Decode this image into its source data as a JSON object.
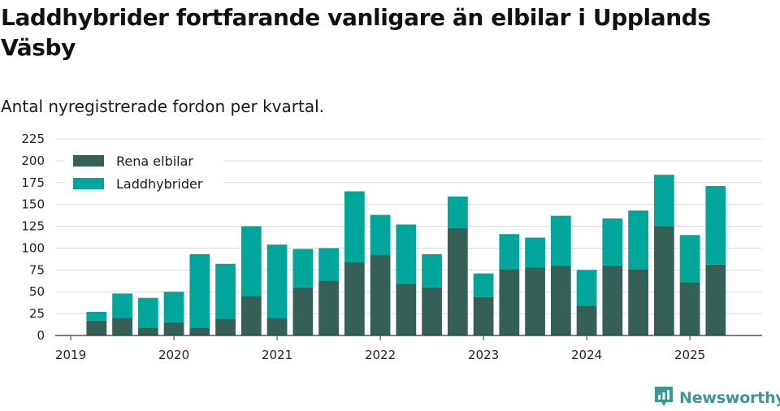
{
  "title": "Laddhybrider fortfarande vanligare än elbilar i Upplands Väsby",
  "subtitle": "Antal nyregistrerade fordon per kvartal.",
  "brand": {
    "name": "Newsworthy",
    "icon": "newsworthy-logo-icon",
    "color": "#3a9a8c"
  },
  "chart_data": {
    "type": "bar",
    "stacked": true,
    "grid": true,
    "legend_position": "top-left",
    "x_tick_labels": [
      "2019",
      "2020",
      "2021",
      "2022",
      "2023",
      "2024",
      "2025"
    ],
    "x_tick_positions": [
      2019,
      2020,
      2021,
      2022,
      2023,
      2024,
      2025
    ],
    "x_range": [
      2018.85,
      2025.7
    ],
    "x": [
      2019.25,
      2019.5,
      2019.75,
      2020.0,
      2020.25,
      2020.5,
      2020.75,
      2021.0,
      2021.25,
      2021.5,
      2021.75,
      2022.0,
      2022.25,
      2022.5,
      2022.75,
      2023.0,
      2023.25,
      2023.5,
      2023.75,
      2024.0,
      2024.25,
      2024.5,
      2024.75,
      2025.0,
      2025.25
    ],
    "ylim": [
      0,
      225
    ],
    "y_ticks": [
      0,
      25,
      50,
      75,
      100,
      125,
      150,
      175,
      200,
      225
    ],
    "series": [
      {
        "name": "Rena elbilar",
        "color": "#356058",
        "values": [
          17,
          20,
          9,
          15,
          9,
          19,
          45,
          20,
          55,
          63,
          84,
          92,
          59,
          55,
          123,
          44,
          76,
          78,
          80,
          34,
          80,
          76,
          125,
          61,
          81
        ]
      },
      {
        "name": "Laddhybrider",
        "color": "#00a69a",
        "values": [
          10,
          28,
          34,
          35,
          84,
          63,
          80,
          84,
          44,
          37,
          81,
          46,
          68,
          38,
          36,
          27,
          40,
          34,
          57,
          41,
          54,
          67,
          59,
          54,
          90
        ]
      }
    ]
  }
}
